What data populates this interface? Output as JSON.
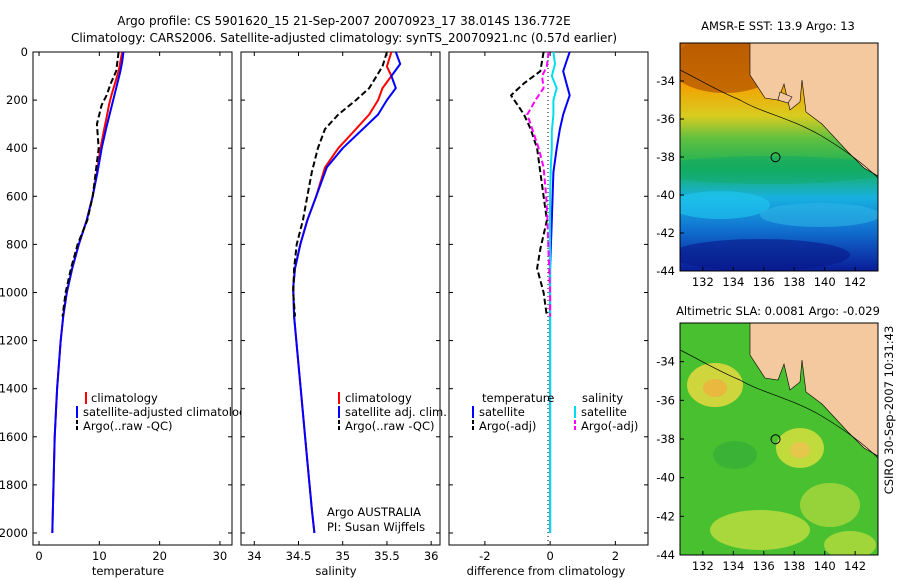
{
  "header": {
    "line1": "Argo profile: CS 5901620_15 21-Sep-2007 20070923_17 38.014S 136.772E",
    "line2": "Climatology: CARS2006. Satellite-adjusted climatology: synTS_20070921.nc (0.57d earlier)"
  },
  "side_label": "CSIRO 30-Sep-2007 10:31:43",
  "colors": {
    "clim": "#ff0000",
    "sat": "#0000ff",
    "argo": "#000000",
    "sat_s": "#00ddee",
    "argo_s": "#ff00ff",
    "land": "#f4c9a0"
  },
  "chart_data": [
    {
      "type": "line",
      "id": "temperature",
      "xlabel": "temperature",
      "ylabel": "",
      "xlim": [
        -1,
        32
      ],
      "ylim": [
        2050,
        0
      ],
      "xticks": [
        0,
        10,
        20,
        30
      ],
      "yticks": [
        0,
        200,
        400,
        600,
        800,
        1000,
        1200,
        1400,
        1600,
        1800,
        2000
      ],
      "legend": {
        "position": "bottom-right",
        "entries": [
          "climatology",
          "satellite-adjusted climatology",
          "Argo(..raw -QC)"
        ]
      },
      "series": [
        {
          "name": "climatology",
          "color": "#ff0000",
          "style": "solid",
          "points": [
            [
              13.8,
              0
            ],
            [
              13.5,
              40
            ],
            [
              13.2,
              80
            ],
            [
              12.6,
              130
            ],
            [
              12.0,
              180
            ],
            [
              11.6,
              220
            ],
            [
              11.3,
              260
            ],
            [
              10.8,
              320
            ],
            [
              10.2,
              400
            ],
            [
              9.6,
              500
            ],
            [
              8.9,
              600
            ],
            [
              7.9,
              700
            ],
            [
              6.6,
              800
            ],
            [
              5.5,
              900
            ],
            [
              4.6,
              1000
            ],
            [
              4.0,
              1100
            ],
            [
              3.6,
              1200
            ],
            [
              3.3,
              1300
            ],
            [
              3.0,
              1400
            ],
            [
              2.8,
              1500
            ],
            [
              2.6,
              1600
            ],
            [
              2.5,
              1700
            ],
            [
              2.4,
              1800
            ],
            [
              2.3,
              1900
            ],
            [
              2.2,
              2000
            ]
          ]
        },
        {
          "name": "satellite-adjusted climatology",
          "color": "#0000ff",
          "style": "solid",
          "points": [
            [
              14.0,
              0
            ],
            [
              13.8,
              40
            ],
            [
              13.5,
              80
            ],
            [
              13.0,
              130
            ],
            [
              12.5,
              180
            ],
            [
              12.1,
              220
            ],
            [
              11.7,
              260
            ],
            [
              11.1,
              320
            ],
            [
              10.4,
              400
            ],
            [
              9.7,
              500
            ],
            [
              8.9,
              600
            ],
            [
              7.9,
              700
            ],
            [
              6.6,
              800
            ],
            [
              5.5,
              900
            ],
            [
              4.6,
              1000
            ],
            [
              4.0,
              1100
            ],
            [
              3.6,
              1200
            ],
            [
              3.3,
              1300
            ],
            [
              3.0,
              1400
            ],
            [
              2.8,
              1500
            ],
            [
              2.6,
              1600
            ],
            [
              2.5,
              1700
            ],
            [
              2.4,
              1800
            ],
            [
              2.3,
              1900
            ],
            [
              2.2,
              2000
            ]
          ]
        },
        {
          "name": "Argo(..raw -QC)",
          "color": "#000000",
          "style": "dash",
          "points": [
            [
              13.2,
              0
            ],
            [
              13.0,
              40
            ],
            [
              12.8,
              80
            ],
            [
              11.9,
              130
            ],
            [
              11.2,
              180
            ],
            [
              10.4,
              220
            ],
            [
              9.6,
              300
            ],
            [
              9.9,
              400
            ],
            [
              9.4,
              500
            ],
            [
              8.9,
              600
            ],
            [
              8.0,
              700
            ],
            [
              6.4,
              800
            ],
            [
              5.3,
              900
            ],
            [
              4.4,
              1000
            ],
            [
              3.9,
              1100
            ]
          ]
        }
      ]
    },
    {
      "type": "line",
      "id": "salinity",
      "xlabel": "salinity",
      "ylabel": "",
      "xlim": [
        33.85,
        36.1
      ],
      "ylim": [
        2050,
        0
      ],
      "xticks": [
        34,
        34.5,
        35,
        35.5,
        36
      ],
      "legend": {
        "position": "bottom-right",
        "entries": [
          "climatology",
          "satellite adj. clim.",
          "Argo(..raw -QC)"
        ]
      },
      "annotation": [
        "Argo AUSTRALIA",
        "PI: Susan Wijffels"
      ],
      "series": [
        {
          "name": "climatology",
          "color": "#ff0000",
          "style": "solid",
          "points": [
            [
              35.55,
              0
            ],
            [
              35.5,
              60
            ],
            [
              35.55,
              100
            ],
            [
              35.45,
              150
            ],
            [
              35.4,
              200
            ],
            [
              35.3,
              260
            ],
            [
              35.15,
              320
            ],
            [
              34.95,
              400
            ],
            [
              34.8,
              480
            ],
            [
              34.7,
              600
            ],
            [
              34.6,
              700
            ],
            [
              34.52,
              800
            ],
            [
              34.46,
              900
            ],
            [
              34.44,
              980
            ],
            [
              34.45,
              1100
            ],
            [
              34.5,
              1300
            ],
            [
              34.55,
              1500
            ],
            [
              34.6,
              1700
            ],
            [
              34.65,
              1900
            ],
            [
              34.68,
              2000
            ]
          ]
        },
        {
          "name": "satellite adj. clim.",
          "color": "#0000ff",
          "style": "solid",
          "points": [
            [
              35.6,
              0
            ],
            [
              35.65,
              50
            ],
            [
              35.55,
              100
            ],
            [
              35.6,
              150
            ],
            [
              35.5,
              200
            ],
            [
              35.4,
              260
            ],
            [
              35.2,
              330
            ],
            [
              35.0,
              400
            ],
            [
              34.82,
              480
            ],
            [
              34.7,
              600
            ],
            [
              34.6,
              700
            ],
            [
              34.52,
              800
            ],
            [
              34.46,
              900
            ],
            [
              34.44,
              980
            ],
            [
              34.45,
              1100
            ],
            [
              34.5,
              1300
            ],
            [
              34.55,
              1500
            ],
            [
              34.6,
              1700
            ],
            [
              34.65,
              1900
            ],
            [
              34.68,
              2000
            ]
          ]
        },
        {
          "name": "Argo(..raw -QC)",
          "color": "#000000",
          "style": "dash",
          "points": [
            [
              35.5,
              0
            ],
            [
              35.45,
              60
            ],
            [
              35.3,
              150
            ],
            [
              35.15,
              200
            ],
            [
              34.95,
              260
            ],
            [
              34.8,
              320
            ],
            [
              34.72,
              400
            ],
            [
              34.65,
              500
            ],
            [
              34.6,
              600
            ],
            [
              34.55,
              700
            ],
            [
              34.48,
              800
            ],
            [
              34.45,
              900
            ],
            [
              34.44,
              1000
            ],
            [
              34.46,
              1100
            ]
          ]
        }
      ]
    },
    {
      "type": "line",
      "id": "difference",
      "xlabel": "difference from climatology",
      "ylabel": "",
      "xlim": [
        -3.1,
        3.0
      ],
      "ylim": [
        2050,
        0
      ],
      "xticks": [
        -2,
        0,
        2
      ],
      "legend": {
        "position": "bottom",
        "columns": [
          {
            "title": "temperature",
            "entries": [
              "satellite",
              "Argo(-adj)"
            ]
          },
          {
            "title": "salinity",
            "entries": [
              "satellite",
              "Argo(-adj)"
            ]
          }
        ]
      },
      "series": [
        {
          "name": "satellite",
          "group": "temperature",
          "color": "#0000ff",
          "style": "solid",
          "points": [
            [
              0.6,
              0
            ],
            [
              0.5,
              40
            ],
            [
              0.4,
              80
            ],
            [
              0.5,
              130
            ],
            [
              0.6,
              180
            ],
            [
              0.5,
              220
            ],
            [
              0.4,
              260
            ],
            [
              0.3,
              320
            ],
            [
              0.2,
              400
            ],
            [
              0.1,
              500
            ],
            [
              0.05,
              700
            ],
            [
              0,
              900
            ],
            [
              0,
              2000
            ]
          ]
        },
        {
          "name": "Argo(-adj)",
          "group": "temperature",
          "color": "#000000",
          "style": "dash",
          "points": [
            [
              -0.2,
              0
            ],
            [
              -0.3,
              80
            ],
            [
              -0.8,
              130
            ],
            [
              -1.2,
              180
            ],
            [
              -1.0,
              220
            ],
            [
              -0.8,
              260
            ],
            [
              -0.6,
              320
            ],
            [
              -0.4,
              400
            ],
            [
              -0.3,
              500
            ],
            [
              -0.1,
              700
            ],
            [
              -0.3,
              820
            ],
            [
              -0.4,
              900
            ],
            [
              -0.2,
              1000
            ],
            [
              -0.1,
              1100
            ]
          ]
        },
        {
          "name": "satellite",
          "group": "salinity",
          "color": "#00ddee",
          "style": "solid",
          "points": [
            [
              0.1,
              0
            ],
            [
              0.15,
              50
            ],
            [
              0.05,
              100
            ],
            [
              0.2,
              150
            ],
            [
              0.1,
              200
            ],
            [
              0.1,
              260
            ],
            [
              0.05,
              330
            ],
            [
              0.05,
              400
            ],
            [
              0.02,
              480
            ],
            [
              0,
              600
            ],
            [
              0,
              2000
            ]
          ]
        },
        {
          "name": "Argo(-adj)",
          "group": "salinity",
          "color": "#ff00ff",
          "style": "dash",
          "points": [
            [
              -0.05,
              0
            ],
            [
              -0.1,
              60
            ],
            [
              -0.25,
              100
            ],
            [
              -0.2,
              150
            ],
            [
              -0.45,
              200
            ],
            [
              -0.7,
              260
            ],
            [
              -0.55,
              320
            ],
            [
              -0.35,
              400
            ],
            [
              -0.2,
              480
            ],
            [
              -0.12,
              600
            ],
            [
              -0.08,
              700
            ],
            [
              -0.06,
              800
            ],
            [
              -0.03,
              900
            ],
            [
              0,
              1000
            ],
            [
              0,
              1100
            ]
          ]
        }
      ]
    },
    {
      "type": "heatmap",
      "id": "sst_map",
      "title": "AMSR-E SST: 13.9  Argo: 13",
      "xlim": [
        130.5,
        143.5
      ],
      "ylim": [
        -44,
        -32
      ],
      "xticks": [
        132,
        134,
        136,
        138,
        140,
        142
      ],
      "yticks": [
        -34,
        -36,
        -38,
        -40,
        -42,
        -44
      ],
      "marker": [
        136.772,
        -38.014
      ]
    },
    {
      "type": "heatmap",
      "id": "sla_map",
      "title": "Altimetric SLA: 0.0081  Argo: -0.029",
      "xlim": [
        130.5,
        143.5
      ],
      "ylim": [
        -44,
        -32
      ],
      "xticks": [
        132,
        134,
        136,
        138,
        140,
        142
      ],
      "yticks": [
        -34,
        -36,
        -38,
        -40,
        -42,
        -44
      ],
      "marker": [
        136.772,
        -38.014
      ]
    }
  ]
}
